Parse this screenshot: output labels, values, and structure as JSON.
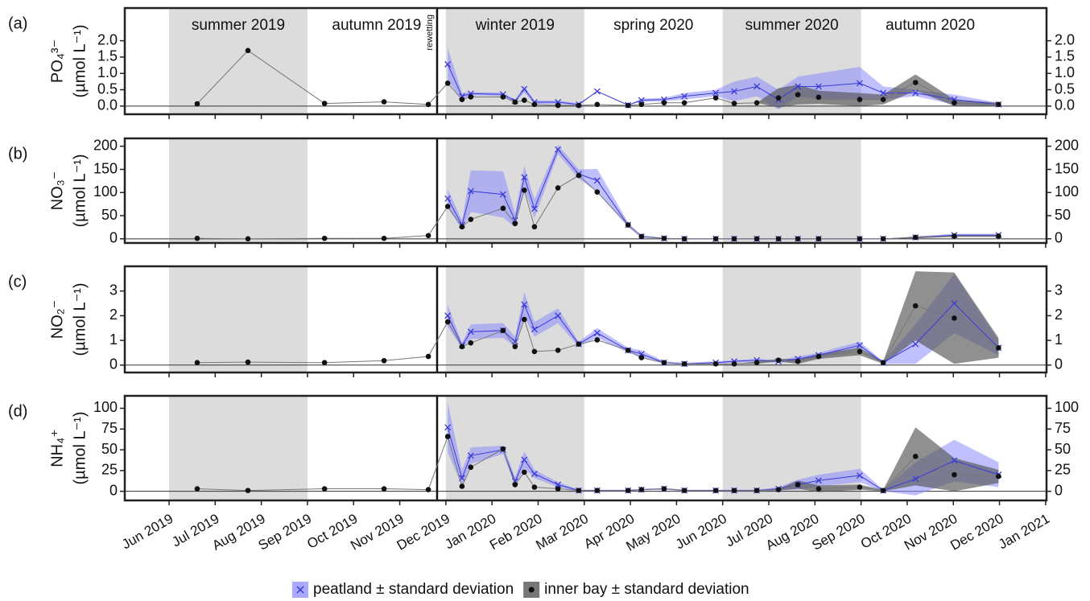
{
  "chart_data": {
    "type": "line",
    "x": [
      0.61,
      1.71,
      3.37,
      4.66,
      5.62,
      6.04,
      6.35,
      6.54,
      7.24,
      7.5,
      7.7,
      7.92,
      8.43,
      8.88,
      9.28,
      9.95,
      10.24,
      10.73,
      11.17,
      11.85,
      12.25,
      12.74,
      13.21,
      13.63,
      14.08,
      14.97,
      15.48,
      16.18,
      17.02,
      17.98
    ],
    "xlim": [
      -0.96,
      19.02
    ],
    "xticks": [
      {
        "value": 0,
        "label": "Jun 2019"
      },
      {
        "value": 1,
        "label": "Jul 2019"
      },
      {
        "value": 2,
        "label": "Aug 2019"
      },
      {
        "value": 3,
        "label": "Sep 2019"
      },
      {
        "value": 4,
        "label": "Oct 2019"
      },
      {
        "value": 5,
        "label": "Nov 2019"
      },
      {
        "value": 6,
        "label": "Dec 2019"
      },
      {
        "value": 7,
        "label": "Jan 2020"
      },
      {
        "value": 8,
        "label": "Feb 2020"
      },
      {
        "value": 9,
        "label": "Mar 2020"
      },
      {
        "value": 10,
        "label": "Apr 2020"
      },
      {
        "value": 11,
        "label": "May 2020"
      },
      {
        "value": 12,
        "label": "Jun 2020"
      },
      {
        "value": 13,
        "label": "Jul 2020"
      },
      {
        "value": 14,
        "label": "Aug 2020"
      },
      {
        "value": 15,
        "label": "Sep 2020"
      },
      {
        "value": 16,
        "label": "Oct 2020"
      },
      {
        "value": 17,
        "label": "Nov 2020"
      },
      {
        "value": 18,
        "label": "Dec 2020"
      },
      {
        "value": 19,
        "label": "Jan 2021"
      }
    ],
    "seasons": [
      {
        "label": "summer 2019",
        "start": 0,
        "end": 3,
        "shaded": true
      },
      {
        "label": "autumn 2019",
        "start": 3,
        "end": 6,
        "shaded": false
      },
      {
        "label": "winter 2019",
        "start": 6,
        "end": 9,
        "shaded": true
      },
      {
        "label": "spring 2020",
        "start": 9,
        "end": 12,
        "shaded": false
      },
      {
        "label": "summer 2020",
        "start": 12,
        "end": 15,
        "shaded": true
      },
      {
        "label": "autumn 2020",
        "start": 15,
        "end": 18,
        "shaded": false
      }
    ],
    "annotation": {
      "label": "rewetting",
      "x": 5.81
    },
    "legend": "bottom",
    "panels": [
      {
        "label": "(a)",
        "ylabel": "PO₄³⁻",
        "yunit": "(µmol L⁻¹)",
        "ylim": [
          -0.25,
          3.0
        ],
        "yticks": [
          {
            "value": 0,
            "label": "0.0"
          },
          {
            "value": 0.5,
            "label": "0.5"
          },
          {
            "value": 1,
            "label": "1.0"
          },
          {
            "value": 1.5,
            "label": "1.5"
          },
          {
            "value": 2,
            "label": "2.0"
          }
        ],
        "series": [
          {
            "name": "peatland ± standard deviation",
            "color": "#3a3ad8",
            "band_color": "#8c8cff",
            "values": [
              null,
              null,
              null,
              null,
              null,
              1.28,
              0.3,
              0.38,
              0.36,
              0.15,
              0.52,
              0.12,
              0.12,
              0.05,
              0.45,
              0.03,
              0.18,
              0.2,
              0.3,
              0.4,
              0.45,
              0.6,
              0.2,
              0.6,
              0.6,
              0.7,
              0.4,
              0.4,
              0.2,
              0.05
            ],
            "sd": [
              null,
              null,
              null,
              null,
              null,
              0.5,
              0.1,
              0.05,
              0.05,
              0.05,
              0.1,
              0.05,
              0.05,
              0.03,
              0,
              0,
              0.05,
              0.05,
              0.1,
              0.1,
              0.3,
              0.3,
              0.3,
              0.3,
              0.4,
              0.5,
              0.2,
              0.1,
              0.15,
              0.05
            ]
          },
          {
            "name": "inner bay ± standard deviation",
            "color": "#111111",
            "band_color": "#555555",
            "values": [
              0.07,
              1.7,
              0.08,
              0.13,
              0.05,
              0.7,
              0.2,
              0.28,
              0.28,
              0.12,
              0.18,
              0.05,
              0.02,
              0.02,
              0.05,
              0.02,
              0.05,
              0.1,
              0.1,
              0.25,
              0.08,
              0.1,
              0.25,
              0.35,
              0.27,
              0.2,
              0.2,
              0.72,
              0.1,
              0.05
            ],
            "sd": [
              0,
              0,
              0,
              0,
              0,
              0,
              0,
              0,
              0,
              0,
              0,
              0,
              0,
              0,
              0,
              0,
              0,
              0,
              0,
              0,
              0,
              0,
              0.3,
              0.3,
              0.2,
              0.2,
              0.15,
              0.25,
              0.1,
              0.05
            ]
          }
        ]
      },
      {
        "label": "(b)",
        "ylabel": "NO₃⁻",
        "yunit": "(µmol L⁻¹)",
        "ylim": [
          -9,
          217
        ],
        "yticks": [
          0,
          50,
          100,
          150,
          200
        ],
        "series": [
          {
            "name": "peatland ± standard deviation",
            "color": "#3a3ad8",
            "band_color": "#8c8cff",
            "values": [
              null,
              null,
              null,
              null,
              null,
              87,
              30,
              103,
              96,
              40,
              133,
              65,
              193,
              140,
              126,
              30,
              5,
              1,
              0,
              0,
              0,
              0,
              0,
              0,
              0,
              0,
              0,
              3,
              8,
              8
            ],
            "sd": [
              null,
              null,
              null,
              null,
              null,
              20,
              10,
              45,
              50,
              15,
              25,
              20,
              10,
              10,
              25,
              5,
              3,
              1,
              0,
              0,
              0,
              0,
              0,
              0,
              0,
              0,
              0,
              2,
              3,
              3
            ]
          },
          {
            "name": "inner bay ± standard deviation",
            "color": "#111111",
            "band_color": "#555555",
            "values": [
              1,
              0,
              1,
              1,
              7,
              70,
              26,
              42,
              66,
              33,
              105,
              26,
              110,
              137,
              101,
              30,
              5,
              1,
              0,
              0,
              0,
              0,
              0,
              0,
              0,
              0,
              0,
              3,
              6,
              6
            ],
            "sd": [
              0,
              0,
              0,
              0,
              0,
              0,
              0,
              0,
              0,
              0,
              0,
              0,
              0,
              0,
              0,
              0,
              0,
              0,
              0,
              0,
              0,
              0,
              0,
              0,
              0,
              0,
              0,
              2,
              2,
              2
            ]
          }
        ]
      },
      {
        "label": "(c)",
        "ylabel": "NO₂⁻",
        "yunit": "(µmol L⁻¹)",
        "ylim": [
          -0.3,
          4.0
        ],
        "yticks": [
          0,
          1,
          2,
          3
        ],
        "series": [
          {
            "name": "peatland ± standard deviation",
            "color": "#3a3ad8",
            "band_color": "#8c8cff",
            "values": [
              null,
              null,
              null,
              null,
              null,
              2.0,
              0.8,
              1.35,
              1.4,
              0.95,
              2.45,
              1.45,
              2.0,
              0.85,
              1.3,
              0.6,
              0.45,
              0.1,
              0.05,
              0.1,
              0.15,
              0.2,
              0.15,
              0.25,
              0.4,
              0.8,
              0.1,
              0.85,
              2.5,
              0.7
            ],
            "sd": [
              null,
              null,
              null,
              null,
              null,
              0.45,
              0.1,
              0.3,
              0.3,
              0.2,
              0.5,
              0.3,
              0.3,
              0.1,
              0.2,
              0.1,
              0.15,
              0.05,
              0.05,
              0.05,
              0.05,
              0.05,
              0.05,
              0.1,
              0.1,
              0.15,
              0.05,
              0.8,
              1.2,
              0.3
            ]
          },
          {
            "name": "inner bay ± standard deviation",
            "color": "#111111",
            "band_color": "#555555",
            "values": [
              0.1,
              0.12,
              0.1,
              0.18,
              0.35,
              1.75,
              0.75,
              0.9,
              1.4,
              0.75,
              1.85,
              0.55,
              0.6,
              0.85,
              1.02,
              0.6,
              0.3,
              0.1,
              0.05,
              0.05,
              0.05,
              0.1,
              0.2,
              0.15,
              0.35,
              0.55,
              0.1,
              2.4,
              1.9,
              0.7
            ],
            "sd": [
              0,
              0,
              0,
              0,
              0,
              0,
              0,
              0,
              0,
              0,
              0,
              0,
              0,
              0,
              0,
              0,
              0,
              0,
              0,
              0,
              0,
              0.05,
              0.05,
              0.1,
              0.1,
              0.15,
              0.05,
              1.4,
              1.85,
              0.4
            ]
          }
        ]
      },
      {
        "label": "(d)",
        "ylabel": "NH₄⁺",
        "yunit": "(µmol L⁻¹)",
        "ylim": [
          -11,
          115
        ],
        "yticks": [
          0,
          25,
          50,
          75,
          100
        ],
        "series": [
          {
            "name": "peatland ± standard deviation",
            "color": "#3a3ad8",
            "band_color": "#8c8cff",
            "values": [
              null,
              null,
              null,
              null,
              null,
              77,
              16,
              43,
              50,
              12,
              38,
              21,
              8,
              1,
              1,
              1,
              2,
              3,
              1,
              1,
              1,
              1,
              3,
              8,
              13,
              19,
              1,
              15,
              37,
              20
            ],
            "sd": [
              null,
              null,
              null,
              null,
              null,
              30,
              10,
              10,
              5,
              5,
              10,
              5,
              3,
              1,
              1,
              1,
              1,
              1,
              1,
              1,
              1,
              1,
              2,
              6,
              7,
              8,
              1,
              20,
              25,
              15
            ]
          },
          {
            "name": "inner bay ± standard deviation",
            "color": "#111111",
            "band_color": "#555555",
            "values": [
              3,
              1,
              3,
              3,
              2,
              66,
              6,
              29,
              51,
              8,
              23,
              5,
              3,
              1,
              1,
              1,
              2,
              3,
              1,
              1,
              1,
              1,
              2,
              8,
              3,
              5,
              1,
              42,
              20,
              18
            ],
            "sd": [
              0,
              0,
              0,
              0,
              0,
              0,
              0,
              0,
              0,
              0,
              0,
              0,
              0,
              0,
              0,
              0,
              0,
              0,
              0,
              0,
              0,
              0,
              1,
              5,
              4,
              3,
              1,
              35,
              20,
              8
            ]
          }
        ]
      }
    ]
  }
}
